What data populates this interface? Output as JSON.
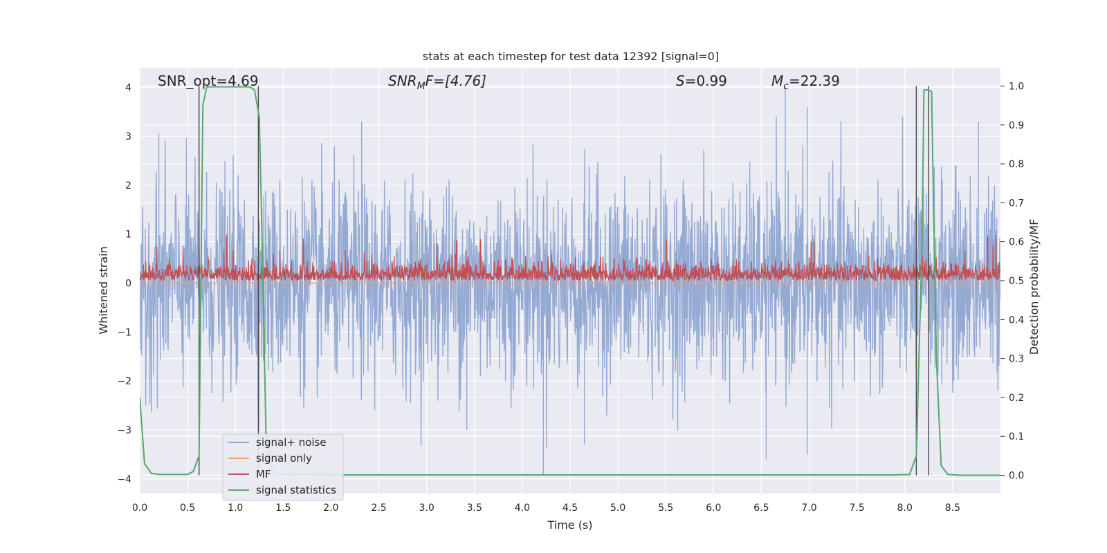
{
  "chart_data": {
    "type": "line",
    "title": "stats at each timestep for test data 12392 [signal=0]",
    "xlabel": "Time (s)",
    "ylabel": "Whitened strain",
    "y2label": "Detection probability/MF",
    "xlim": [
      0,
      9.0
    ],
    "ylim": [
      -4.3,
      4.4
    ],
    "y2lim": [
      -0.047,
      1.047
    ],
    "xticks": [
      0.0,
      0.5,
      1.0,
      1.5,
      2.0,
      2.5,
      3.0,
      3.5,
      4.0,
      4.5,
      5.0,
      5.5,
      6.0,
      6.5,
      7.0,
      7.5,
      8.0,
      8.5
    ],
    "xtick_labels": [
      "0.0",
      "0.5",
      "1.0",
      "1.5",
      "2.0",
      "2.5",
      "3.0",
      "3.5",
      "4.0",
      "4.5",
      "5.0",
      "5.5",
      "6.0",
      "6.5",
      "7.0",
      "7.5",
      "8.0",
      "8.5"
    ],
    "yticks": [
      -4,
      -3,
      -2,
      -1,
      0,
      1,
      2,
      3,
      4
    ],
    "ytick_labels": [
      "−4",
      "−3",
      "−2",
      "−1",
      "0",
      "1",
      "2",
      "3",
      "4"
    ],
    "y2ticks": [
      0.0,
      0.1,
      0.2,
      0.3,
      0.4,
      0.5,
      0.6,
      0.7,
      0.8,
      0.9,
      1.0
    ],
    "y2tick_labels": [
      "0.0",
      "0.1",
      "0.2",
      "0.3",
      "0.4",
      "0.5",
      "0.6",
      "0.7",
      "0.8",
      "0.9",
      "1.0"
    ],
    "annotations": {
      "snr_opt": "SNR_opt=4.69",
      "snr_mf_main": "SNR",
      "snr_mf_sub": "M",
      "snr_mf_rest": "F=[4.76]",
      "s_main": "S",
      "s_rest": "=0.99",
      "mc_main": "M",
      "mc_sub": "c",
      "mc_rest": "=22.39"
    },
    "vlines_x": [
      0.62,
      1.24,
      8.12,
      8.25
    ],
    "series": [
      {
        "name": "signal+ noise",
        "axis": "left",
        "color": "#8fa6d1",
        "sample_rate": 256,
        "envelope": {
          "upper_typical": 1.5,
          "upper_peak": 4.0,
          "lower_typical": -1.6,
          "lower_peak": -4.0
        },
        "notable_peaks": [
          [
            0.2,
            3.05
          ],
          [
            2.32,
            3.3
          ],
          [
            6.75,
            4.0
          ],
          [
            6.98,
            3.6
          ],
          [
            8.77,
            3.3
          ],
          [
            4.22,
            -3.9
          ],
          [
            6.55,
            -3.6
          ],
          [
            6.98,
            -3.5
          ],
          [
            4.65,
            -3.3
          ],
          [
            3.42,
            -3.0
          ]
        ]
      },
      {
        "name": "signal only",
        "axis": "left",
        "color": "#e8a080",
        "values_note": "flat at 0",
        "value": 0.0
      },
      {
        "name": "MF",
        "axis": "right",
        "color": "#c44e52",
        "sample_rate": 256,
        "baseline": 0.51,
        "envelope": {
          "typical_high": 0.555,
          "peak_high": 0.625,
          "low": 0.5
        }
      },
      {
        "name": "signal statistics",
        "axis": "right",
        "color": "#55a868",
        "x": [
          0.0,
          0.05,
          0.12,
          0.2,
          0.3,
          0.5,
          0.56,
          0.62,
          0.66,
          0.7,
          0.8,
          1.0,
          1.15,
          1.2,
          1.25,
          1.28,
          1.32,
          1.38,
          1.45,
          1.55,
          1.75,
          2.0,
          3.0,
          4.0,
          5.0,
          6.0,
          7.0,
          7.9,
          8.05,
          8.12,
          8.18,
          8.2,
          8.25,
          8.28,
          8.3,
          8.33,
          8.38,
          8.45,
          8.6,
          9.0
        ],
        "y": [
          0.2,
          0.03,
          0.005,
          0.002,
          0.002,
          0.002,
          0.01,
          0.05,
          0.95,
          0.998,
          0.998,
          0.998,
          0.998,
          0.99,
          0.92,
          0.6,
          0.1,
          0.02,
          0.003,
          0.002,
          0.003,
          0.001,
          0.001,
          0.001,
          0.001,
          0.001,
          0.001,
          0.001,
          0.002,
          0.05,
          0.6,
          0.99,
          0.99,
          0.985,
          0.7,
          0.3,
          0.025,
          0.002,
          0.0,
          0.0
        ]
      }
    ],
    "legend": {
      "placement": "lower-left",
      "entries": [
        {
          "label": "signal+ noise",
          "color": "#8fa6d1"
        },
        {
          "label": "signal only",
          "color": "#e8a080"
        },
        {
          "label": "MF",
          "color": "#c44e52"
        },
        {
          "label": "signal statistics",
          "color": "#55a868"
        }
      ]
    },
    "style": {
      "plot_bg": "#eaeaf2",
      "grid_color": "#ffffff",
      "vline_color": "#444444",
      "text_color": "#262626",
      "legend_bg": "#eaeaf2",
      "legend_border": "#cccccc"
    }
  }
}
